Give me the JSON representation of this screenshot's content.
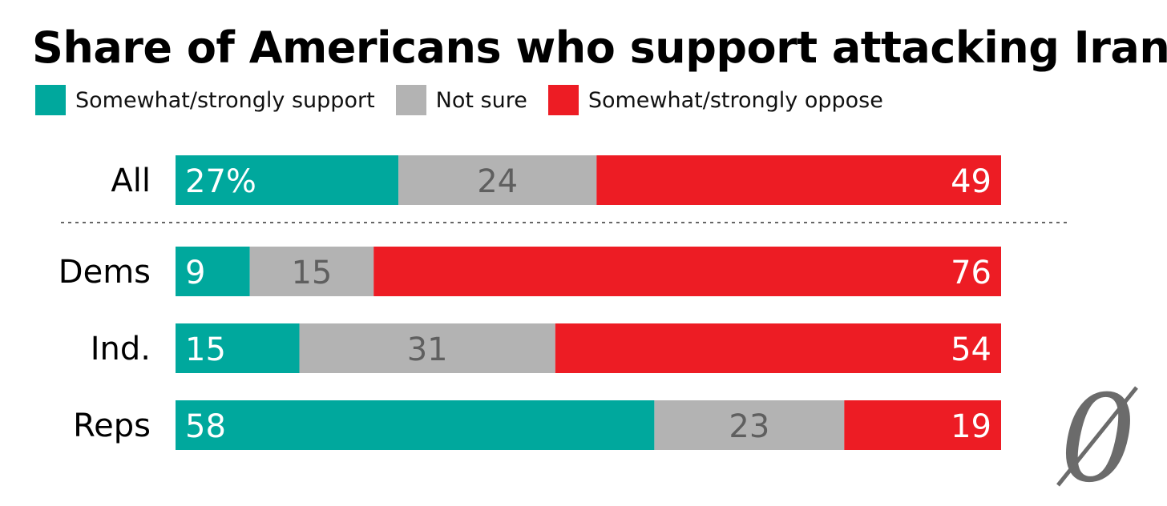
{
  "title": "Share of Americans who support attacking Iran",
  "chart_data": {
    "type": "bar",
    "orientation": "horizontal",
    "stacked": true,
    "percent_scale": [
      0,
      100
    ],
    "title": "Share of Americans who support attacking Iran",
    "categories": [
      "All",
      "Dems",
      "Ind.",
      "Reps"
    ],
    "series": [
      {
        "name": "Somewhat/strongly support",
        "color": "#00a89d",
        "label_color": "#ffffff",
        "values": [
          27,
          9,
          15,
          58
        ]
      },
      {
        "name": "Not sure",
        "color": "#b3b3b3",
        "label_color": "#5f5f5f",
        "values": [
          24,
          15,
          31,
          23
        ]
      },
      {
        "name": "Somewhat/strongly oppose",
        "color": "#ed1c24",
        "label_color": "#ffffff",
        "values": [
          49,
          76,
          54,
          19
        ]
      }
    ],
    "data_labels": [
      [
        "27%",
        "24",
        "49"
      ],
      [
        "9",
        "15",
        "76"
      ],
      [
        "15",
        "31",
        "54"
      ],
      [
        "58",
        "23",
        "19"
      ]
    ],
    "separator_after": "All",
    "legend_position": "top-left"
  },
  "watermark": {
    "glyph": "0",
    "color": "#6b6b6b"
  }
}
